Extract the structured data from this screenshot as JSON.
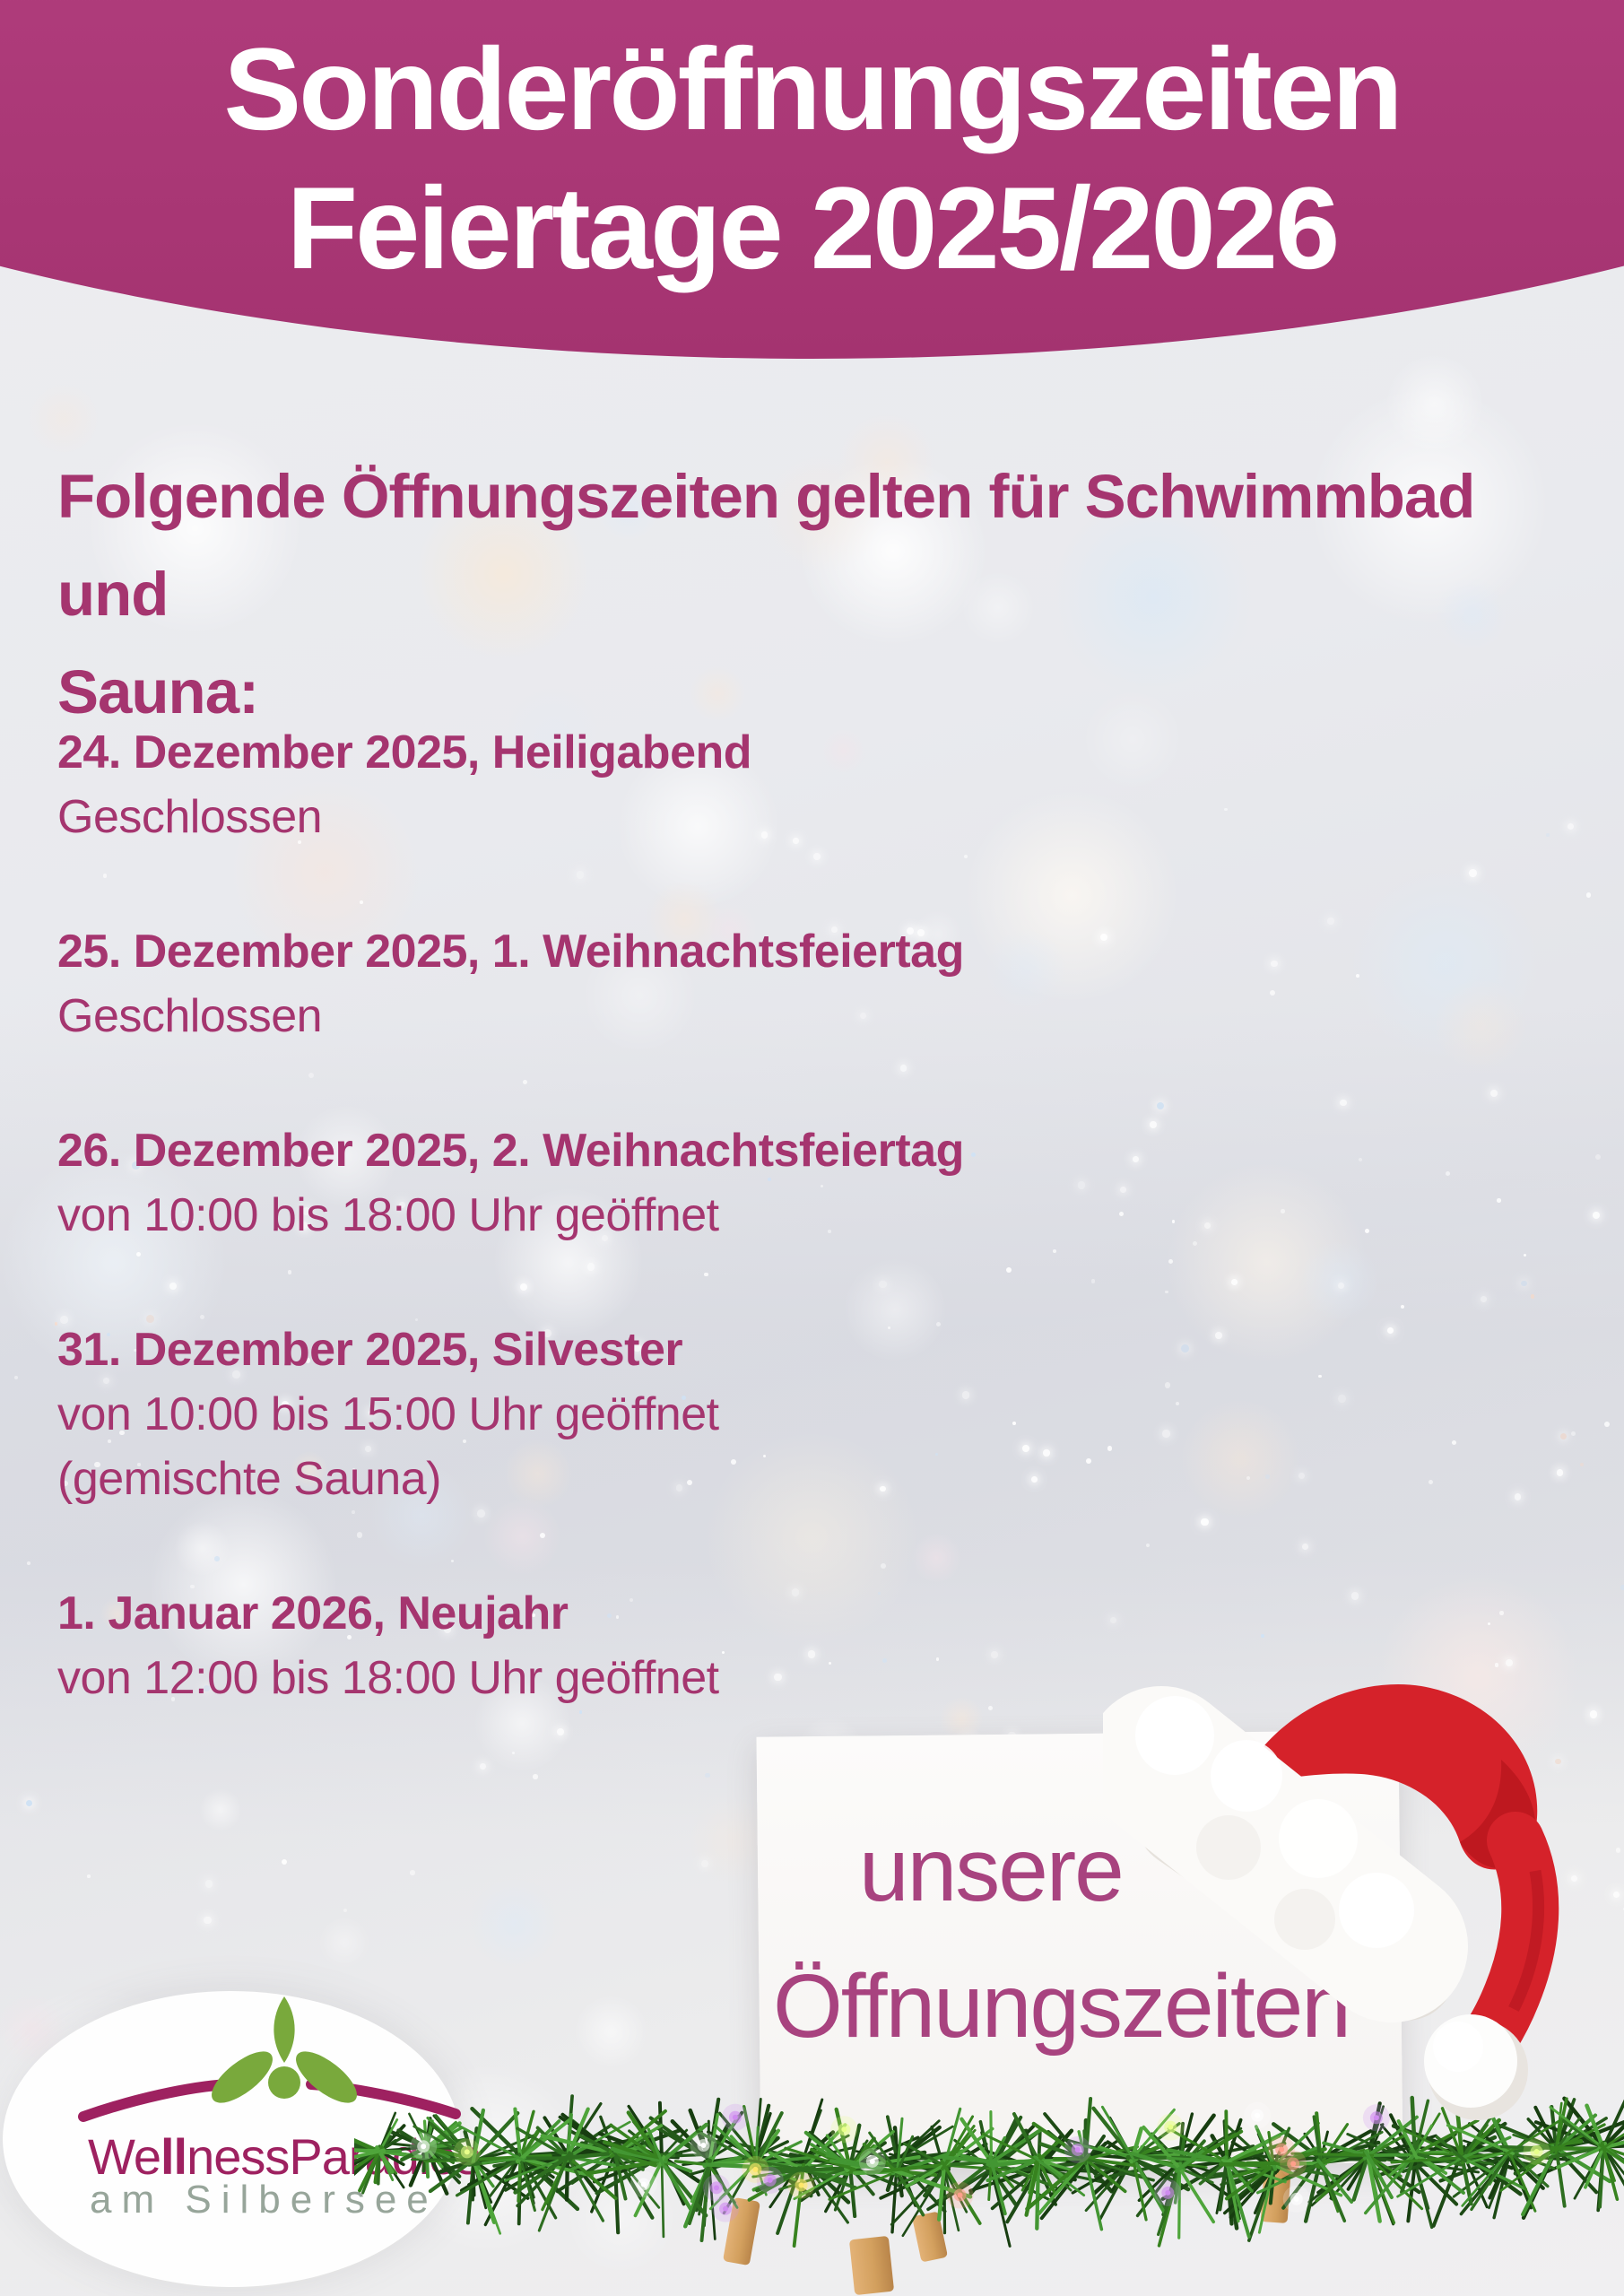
{
  "banner": {
    "title_line1": "Sonderöffnungszeiten",
    "title_line2": "Feiertage 2025/2026"
  },
  "intro": {
    "line1": "Folgende Öffnungszeiten gelten für Schwimmbad und",
    "line2": "Sauna:"
  },
  "schedule": [
    {
      "title": "24. Dezember 2025, Heiligabend",
      "lines": [
        "Geschlossen"
      ]
    },
    {
      "title": "25. Dezember 2025, 1. Weihnachtsfeiertag",
      "lines": [
        "Geschlossen"
      ]
    },
    {
      "title": "26. Dezember 2025, 2. Weihnachtsfeiertag",
      "lines": [
        "von 10:00 bis 18:00 Uhr geöffnet"
      ]
    },
    {
      "title": "31. Dezember 2025, Silvester",
      "lines": [
        "von 10:00 bis 15:00 Uhr geöffnet",
        "(gemischte Sauna)"
      ]
    },
    {
      "title": "1. Januar 2026, Neujahr",
      "lines": [
        "von 12:00 bis 18:00 Uhr geöffnet"
      ]
    }
  ],
  "sign": {
    "line1": "unsere",
    "line2": "Öffnungszeiten"
  },
  "logo": {
    "name_parts": [
      {
        "text": "We",
        "weight": 400
      },
      {
        "text": "ll",
        "weight": 700
      },
      {
        "text": "ness",
        "weight": 400
      },
      {
        "text": "Paradies",
        "weight": 400
      }
    ],
    "subtitle": "am Silbersee"
  },
  "colors": {
    "banner_magenta": "#ab3876",
    "text_magenta": "#a5356f",
    "sign_text_magenta": "#a8437f",
    "logo_magenta": "#9e2160",
    "logo_green": "#79a93c",
    "logo_subtitle_gray": "#97a59a",
    "santa_red": "#d5222a",
    "garland_green": "#2e6e20"
  }
}
